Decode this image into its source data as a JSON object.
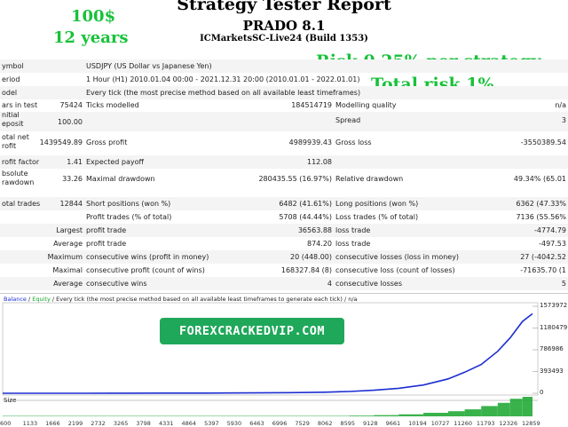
{
  "header": {
    "title": "Strategy Tester Report",
    "ea_name": "PRADO 8.1",
    "server": "ICMarketsSC-Live24 (Build 1353)"
  },
  "notes": {
    "deposit": "100$",
    "years": "12 years",
    "risk_line1": "Risk 0.25% per strategy",
    "risk_line2": "Total risk 1%"
  },
  "report": {
    "symbol": {
      "label": "ymbol",
      "value": "USDJPY (US Dollar vs Japanese Yen)"
    },
    "period": {
      "label": "eriod",
      "value": "1 Hour (H1) 2010.01.04 00:00 - 2021.12.31 20:00 (2010.01.01 - 2022.01.01)"
    },
    "model": {
      "label": "odel",
      "value": "Every tick (the most precise method based on all available least timeframes)"
    },
    "bars": {
      "label": "ars in test",
      "value": "75424",
      "ticks_label": "Ticks modelled",
      "ticks_value": "184514719",
      "quality_label": "Modelling quality",
      "quality_value": "n/a"
    },
    "deposit": {
      "label1": "nitial",
      "label2": "eposit",
      "value": "100.00",
      "spread_label": "Spread",
      "spread_value": "3"
    },
    "net_profit": {
      "label1": "otal net",
      "label2": "rofit",
      "value": "1439549.89",
      "gp_label": "Gross profit",
      "gp_value": "4989939.43",
      "gl_label": "Gross loss",
      "gl_value": "-3550389.54"
    },
    "profit_factor": {
      "label": "rofit factor",
      "value": "1.41",
      "ep_label": "Expected payoff",
      "ep_value": "112.08"
    },
    "absolute_dd": {
      "label1": "bsolute",
      "label2": "rawdown",
      "value": "33.26",
      "md_label": "Maximal drawdown",
      "md_value": "280435.55 (16.97%)",
      "rd_label": "Relative drawdown",
      "rd_value": "49.34% (65.01"
    },
    "total_trades": {
      "label": "otal trades",
      "value": "12844",
      "sp_label": "Short positions (won %)",
      "sp_value": "6482 (41.61%)",
      "lp_label": "Long positions (won %)",
      "lp_value": "6362 (47.33%"
    },
    "profit_trades": {
      "label": "Profit trades (% of total)",
      "value": "5708 (44.44%)",
      "lt_label": "Loss trades (% of total)",
      "lt_value": "7136 (55.56%"
    },
    "largest": {
      "label": "Largest",
      "pt_label": "profit trade",
      "pt_value": "36563.88",
      "lt_label": "loss trade",
      "lt_value": "-4774.79"
    },
    "average": {
      "label": "Average",
      "pt_label": "profit trade",
      "pt_value": "874.20",
      "lt_label": "loss trade",
      "lt_value": "-497.53"
    },
    "maximum": {
      "label": "Maximum",
      "cw_label": "consecutive wins (profit in money)",
      "cw_value": "20 (448.00)",
      "cl_label": "consecutive losses (loss in money)",
      "cl_value": "27 (-4042.52"
    },
    "maximal": {
      "label": "Maximal",
      "cp_label": "consecutive profit (count of wins)",
      "cp_value": "168327.84 (8)",
      "cl_label": "consecutive loss (count of losses)",
      "cl_value": "-71635.70 (1"
    },
    "average_consec": {
      "label": "Average",
      "cw_label": "consecutive wins",
      "cw_value": "4",
      "cl_label": "consecutive losses",
      "cl_value": "5"
    }
  },
  "chart_legend": {
    "balance": "Balance",
    "sep1": " / ",
    "equity": "Equity",
    "rest": " / Every tick (the most precise method based on all available least timeframes to generate each tick) / n/a"
  },
  "watermark": "FOREXCRACKEDVIP.COM",
  "size_label": "Size",
  "chart_data": {
    "type": "line",
    "title": "",
    "xlabel": "",
    "ylabel": "",
    "y_ticks": [
      "1573972",
      "1180479",
      "786986",
      "393493",
      "0"
    ],
    "ylim": [
      0,
      1573972
    ],
    "x_ticks": [
      "600",
      "1133",
      "1666",
      "2199",
      "2732",
      "3265",
      "3798",
      "4331",
      "4864",
      "5397",
      "5930",
      "6463",
      "6996",
      "7529",
      "8062",
      "8595",
      "9128",
      "9661",
      "10194",
      "10727",
      "11260",
      "11793",
      "12326",
      "12859"
    ],
    "x": [
      0,
      1000,
      2000,
      3000,
      4000,
      5000,
      6000,
      7000,
      7800,
      8400,
      9000,
      9600,
      10200,
      10800,
      11200,
      11600,
      12000,
      12300,
      12600,
      12844
    ],
    "series": [
      {
        "name": "Balance",
        "color": "#1b2ed1",
        "values": [
          100,
          300,
          800,
          1500,
          2500,
          4000,
          7000,
          12000,
          20000,
          32000,
          55000,
          90000,
          150000,
          260000,
          380000,
          520000,
          760000,
          1000000,
          1300000,
          1439650
        ]
      }
    ]
  }
}
